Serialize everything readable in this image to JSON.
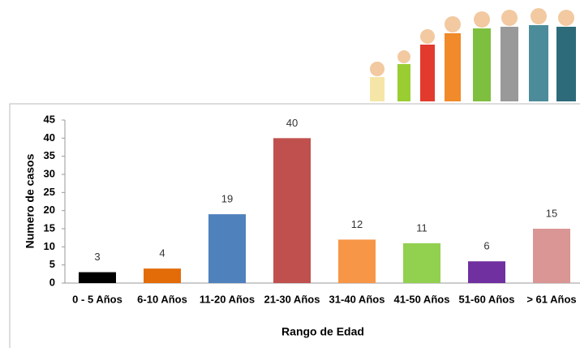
{
  "chart_data": {
    "type": "bar",
    "x_label": "Rango de Edad",
    "y_label": "Numero de casos",
    "categories": [
      "0 - 5 Años",
      "6-10 Años",
      "11-20 Años",
      "21-30 Años",
      "31-40 Años",
      "41-50 Años",
      "51-60 Años",
      "> 61 Años"
    ],
    "values": [
      3,
      4,
      19,
      40,
      12,
      11,
      6,
      15
    ],
    "colors": [
      "#000000",
      "#e36c09",
      "#4f81bd",
      "#c0504d",
      "#f79646",
      "#92d050",
      "#7030a0",
      "#d99694"
    ],
    "ylim": [
      0,
      45
    ],
    "yticks": [
      0,
      5,
      10,
      15,
      20,
      25,
      30,
      35,
      40,
      45
    ],
    "grid": false
  }
}
